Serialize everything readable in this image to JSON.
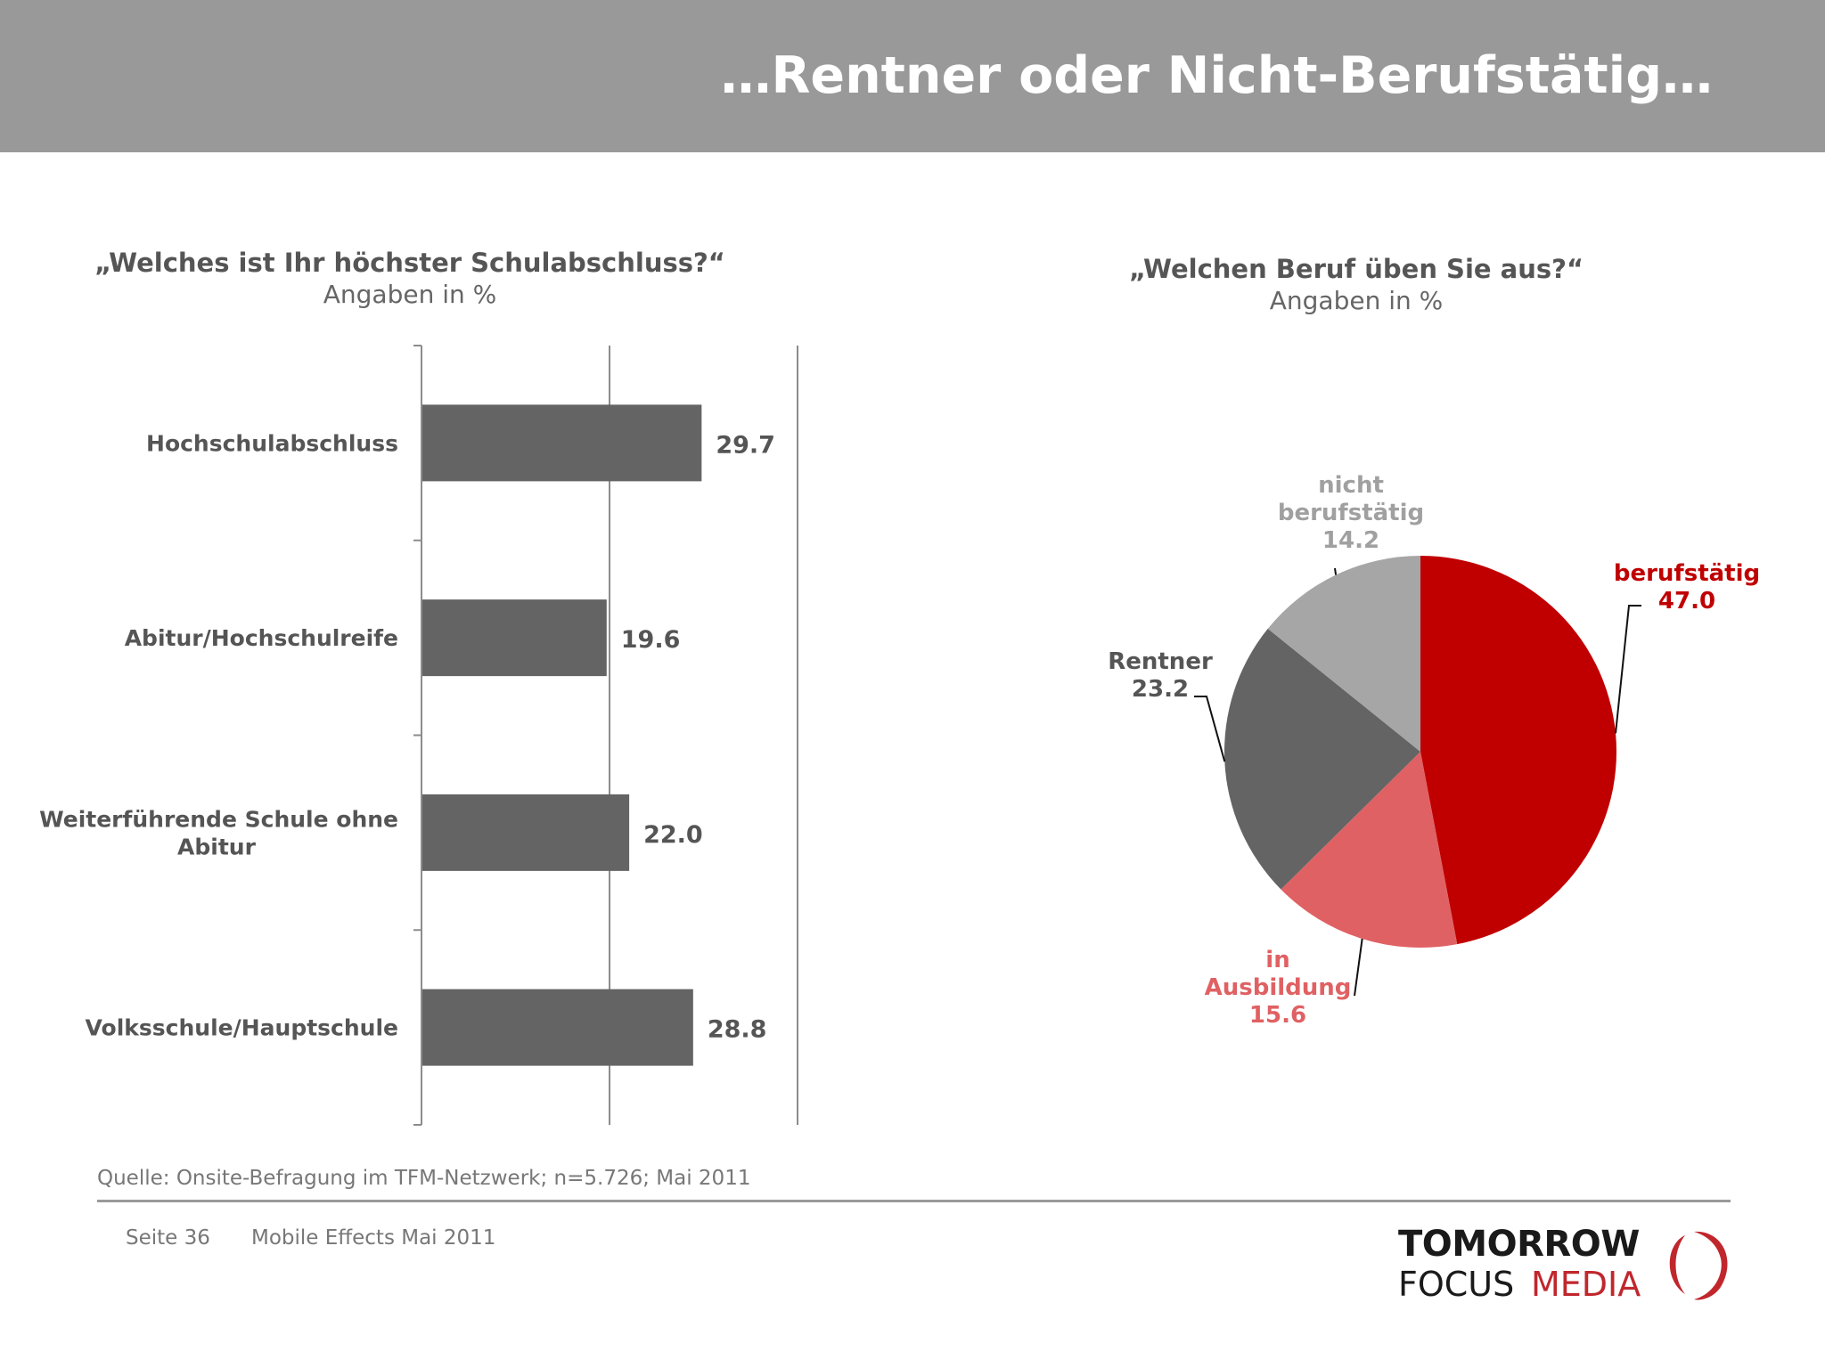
{
  "header": {
    "title": "…Rentner oder Nicht-Berufstätig…"
  },
  "left_chart": {
    "question": "„Welches ist Ihr höchster Schulabschluss?“",
    "subtitle": "Angaben in %"
  },
  "right_chart": {
    "question": "„Welchen Beruf üben Sie aus?“",
    "subtitle": "Angaben in %"
  },
  "chart_data": [
    {
      "type": "bar",
      "orientation": "horizontal",
      "categories": [
        "Hochschulabschluss",
        "Abitur/Hochschulreife",
        "Weiterführende Schule ohne Abitur",
        "Volksschule/Hauptschule"
      ],
      "category_lines": [
        [
          "Hochschulabschluss"
        ],
        [
          "Abitur/Hochschulreife"
        ],
        [
          "Weiterführende Schule ohne",
          "Abitur"
        ],
        [
          "Volksschule/Hauptschule"
        ]
      ],
      "values": [
        29.7,
        19.6,
        22.0,
        28.8
      ],
      "value_labels": [
        "29.7",
        "19.6",
        "22.0",
        "28.8"
      ],
      "xlim": [
        0,
        40
      ],
      "gridlines": [
        20,
        40
      ],
      "bar_color": "#646464"
    },
    {
      "type": "pie",
      "slices": [
        {
          "label_lines": [
            "berufstätig"
          ],
          "value": 47.0,
          "value_label": "47.0",
          "color": "#c00000",
          "label_color": "#c00000"
        },
        {
          "label_lines": [
            "in",
            "Ausbildung"
          ],
          "value": 15.6,
          "value_label": "15.6",
          "color": "#e06163",
          "label_color": "#e06163"
        },
        {
          "label_lines": [
            "Rentner"
          ],
          "value": 23.2,
          "value_label": "23.2",
          "color": "#646464",
          "label_color": "#555555"
        },
        {
          "label_lines": [
            "nicht",
            "berufstätig"
          ],
          "value": 14.2,
          "value_label": "14.2",
          "color": "#a6a6a6",
          "label_color": "#a0a0a0"
        }
      ]
    }
  ],
  "footer": {
    "source": "Quelle: Onsite-Befragung im TFM-Netzwerk; n=5.726; Mai 2011",
    "page": "Seite 36",
    "document": "Mobile Effects Mai 2011"
  },
  "logo": {
    "line1": "TOMORROW",
    "line2a": "FOCUS",
    "line2b": "MEDIA",
    "colors": {
      "dark": "#1a1a1a",
      "red": "#c0272d"
    }
  }
}
